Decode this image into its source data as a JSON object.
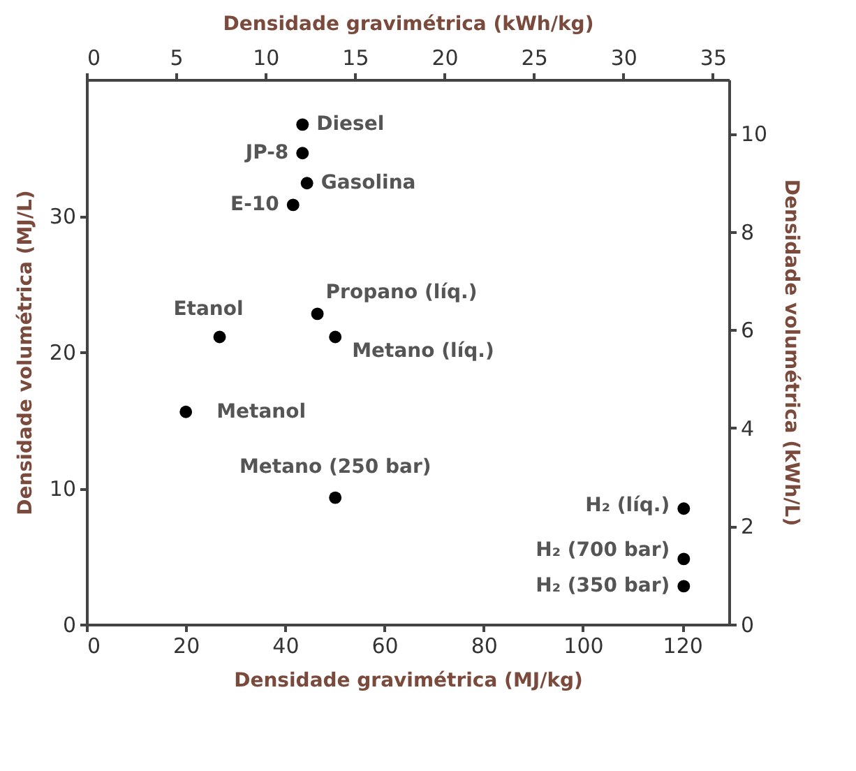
{
  "chart_data": {
    "type": "scatter",
    "xlabel": "Densidade gravimétrica (MJ/kg)",
    "ylabel": "Densidade volumétrica (MJ/L)",
    "x2label": "Densidade gravimétrica (kWh/kg)",
    "y2label": "Densidade volumétrica (kWh/L)",
    "xlim": [
      0,
      129.4
    ],
    "xticks": [
      0,
      20,
      40,
      60,
      80,
      100,
      120
    ],
    "ylim": [
      0,
      40
    ],
    "yticks": [
      0,
      10,
      20,
      30
    ],
    "x2lim": [
      0,
      35.9
    ],
    "x2ticks": [
      0,
      5,
      10,
      15,
      20,
      25,
      30,
      35
    ],
    "y2lim": [
      0,
      11.1
    ],
    "y2ticks": [
      0,
      2,
      4,
      6,
      8,
      10
    ],
    "grid": false,
    "marker": "circle",
    "series": [
      {
        "color": "#000000",
        "x": [
          43.5,
          43.5,
          44.4,
          41.6,
          26.8,
          46.5,
          50.1,
          20.0,
          50.1,
          120.3,
          120.3,
          120.3
        ],
        "values": [
          36.7,
          34.6,
          32.4,
          30.8,
          21.1,
          22.8,
          21.1,
          15.6,
          9.3,
          8.5,
          4.8,
          2.8
        ]
      }
    ],
    "annotations": [
      {
        "text": "Diesel",
        "x": 43.5,
        "y": 36.7
      },
      {
        "text": "JP-8",
        "x": 43.5,
        "y": 34.6
      },
      {
        "text": "Gasolina",
        "x": 44.4,
        "y": 32.4
      },
      {
        "text": "E-10",
        "x": 41.6,
        "y": 30.8
      },
      {
        "text": "Etanol",
        "x": 26.8,
        "y": 21.1
      },
      {
        "text": "Propano (líq.)",
        "x": 46.5,
        "y": 22.8
      },
      {
        "text": "Metano (líq.)",
        "x": 50.1,
        "y": 21.1
      },
      {
        "text": "Metanol",
        "x": 20.0,
        "y": 15.6
      },
      {
        "text": "Metano (250 bar)",
        "x": 50.1,
        "y": 9.3
      },
      {
        "text": "H₂ (líq.)",
        "x": 120.3,
        "y": 8.5
      },
      {
        "text": "H₂ (700 bar)",
        "x": 120.3,
        "y": 4.8
      },
      {
        "text": "H₂ (350 bar)",
        "x": 120.3,
        "y": 2.8
      }
    ]
  }
}
